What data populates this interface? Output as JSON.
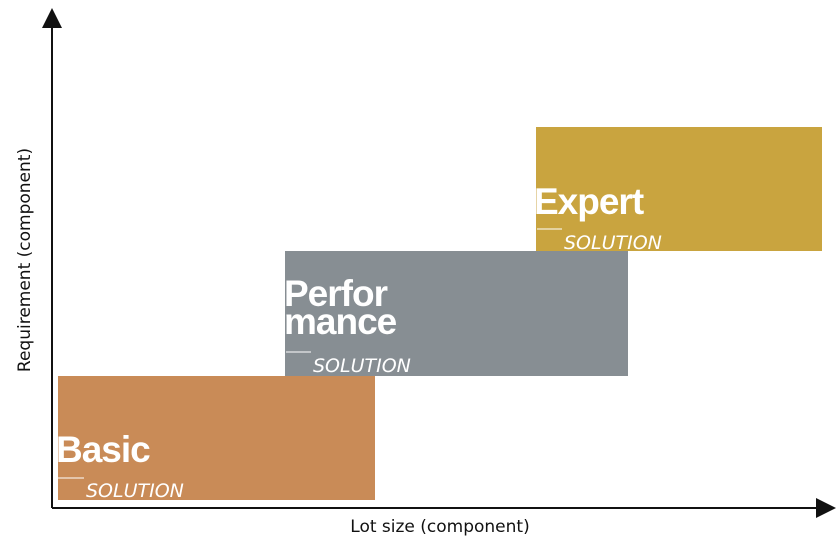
{
  "axes": {
    "y_label": "Requirement (component)",
    "x_label": "Lot size (component)"
  },
  "boxes": [
    {
      "title_lines": [
        "Basic"
      ],
      "subtitle": "SOLUTION"
    },
    {
      "title_lines": [
        "Perfor",
        "mance"
      ],
      "subtitle": "SOLUTION"
    },
    {
      "title_lines": [
        "Expert"
      ],
      "subtitle": "SOLUTION"
    }
  ]
}
